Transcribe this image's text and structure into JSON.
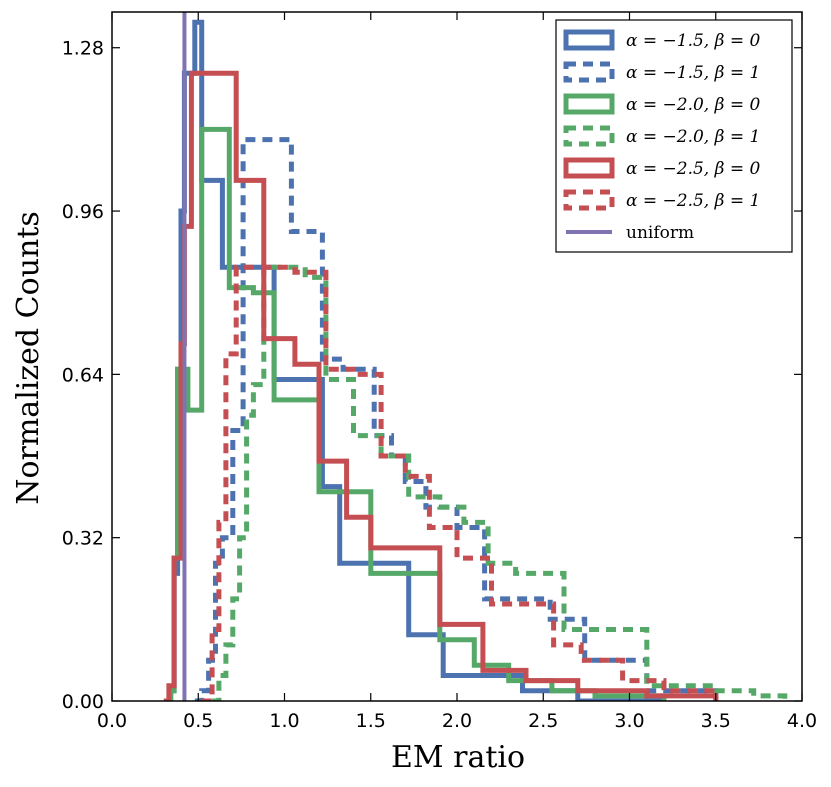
{
  "chart_data": {
    "type": "histogram-step",
    "title": "",
    "xlabel": "EM ratio",
    "ylabel": "Normalized Counts",
    "xlim": [
      0.0,
      4.0
    ],
    "ylim": [
      0.0,
      1.35
    ],
    "xticks": [
      0.0,
      0.5,
      1.0,
      1.5,
      2.0,
      2.5,
      3.0,
      3.5,
      4.0
    ],
    "xtick_labels": [
      "0.0",
      "0.5",
      "1.0",
      "1.5",
      "2.0",
      "2.5",
      "3.0",
      "3.5",
      "4.0"
    ],
    "yticks": [
      0.0,
      0.32,
      0.64,
      0.96,
      1.28
    ],
    "ytick_labels": [
      "0.00",
      "0.32",
      "0.64",
      "0.96",
      "1.28"
    ],
    "legend_position": "top-right",
    "series": [
      {
        "name": "α = −1.5, β = 0",
        "color": "#4C72B0",
        "style": "solid",
        "edges": [
          0.32,
          0.34,
          0.36,
          0.38,
          0.4,
          0.42,
          0.48,
          0.52,
          0.64,
          0.78,
          0.94,
          1.22,
          1.32,
          1.5,
          1.72,
          1.92,
          2.12,
          2.38,
          2.7,
          3.2
        ],
        "heights": [
          0.0,
          0.02,
          0.25,
          0.65,
          0.96,
          1.23,
          1.33,
          1.02,
          0.85,
          0.85,
          0.63,
          0.42,
          0.27,
          0.27,
          0.13,
          0.05,
          0.05,
          0.02,
          0.0
        ]
      },
      {
        "name": "α = −1.5, β = 1",
        "color": "#4C72B0",
        "style": "dashed",
        "edges": [
          0.48,
          0.52,
          0.56,
          0.6,
          0.64,
          0.7,
          0.76,
          0.9,
          1.04,
          1.22,
          1.34,
          1.52,
          1.62,
          1.7,
          1.82,
          2.0,
          2.16,
          2.36,
          2.54,
          2.74,
          3.1,
          3.5
        ],
        "heights": [
          0.0,
          0.02,
          0.08,
          0.27,
          0.32,
          0.53,
          1.1,
          1.1,
          0.92,
          0.67,
          0.65,
          0.52,
          0.48,
          0.43,
          0.38,
          0.34,
          0.2,
          0.2,
          0.16,
          0.08,
          0.02,
          0.0
        ]
      },
      {
        "name": "α = −2.0, β = 0",
        "color": "#55A868",
        "style": "solid",
        "edges": [
          0.3,
          0.34,
          0.36,
          0.38,
          0.44,
          0.52,
          0.68,
          0.82,
          0.94,
          1.2,
          1.34,
          1.5,
          1.7,
          1.9,
          2.1,
          2.3,
          2.55,
          2.8,
          3.2
        ],
        "heights": [
          0.0,
          0.02,
          0.28,
          0.65,
          0.57,
          1.12,
          0.81,
          0.8,
          0.59,
          0.41,
          0.41,
          0.25,
          0.25,
          0.12,
          0.07,
          0.04,
          0.02,
          0.01,
          0.0
        ]
      },
      {
        "name": "α = −2.0, β = 1",
        "color": "#55A868",
        "style": "dashed",
        "edges": [
          0.58,
          0.62,
          0.66,
          0.7,
          0.74,
          0.78,
          0.82,
          0.88,
          1.0,
          1.12,
          1.24,
          1.4,
          1.56,
          1.72,
          1.9,
          2.04,
          2.18,
          2.34,
          2.62,
          2.84,
          3.1,
          3.3,
          3.5,
          3.72,
          3.9
        ],
        "heights": [
          0.0,
          0.05,
          0.11,
          0.2,
          0.32,
          0.56,
          0.62,
          0.85,
          0.85,
          0.83,
          0.63,
          0.52,
          0.48,
          0.4,
          0.38,
          0.35,
          0.27,
          0.25,
          0.14,
          0.14,
          0.03,
          0.03,
          0.02,
          0.01,
          0.0
        ]
      },
      {
        "name": "α = −2.5, β = 0",
        "color": "#C44E52",
        "style": "solid",
        "edges": [
          0.3,
          0.33,
          0.36,
          0.4,
          0.42,
          0.46,
          0.56,
          0.72,
          0.88,
          1.06,
          1.2,
          1.36,
          1.5,
          1.7,
          1.9,
          2.15,
          2.4,
          2.7,
          3.1,
          3.5
        ],
        "heights": [
          0.0,
          0.03,
          0.28,
          0.7,
          0.93,
          1.23,
          1.23,
          1.02,
          0.71,
          0.66,
          0.47,
          0.36,
          0.3,
          0.3,
          0.15,
          0.06,
          0.04,
          0.02,
          0.01,
          0.0
        ]
      },
      {
        "name": "α = −2.5, β = 1",
        "color": "#C44E52",
        "style": "dashed",
        "edges": [
          0.52,
          0.58,
          0.62,
          0.66,
          0.72,
          0.76,
          0.82,
          0.92,
          1.06,
          1.24,
          1.4,
          1.56,
          1.7,
          1.84,
          2.0,
          2.2,
          2.4,
          2.56,
          2.72,
          2.96,
          3.2,
          3.5
        ],
        "heights": [
          0.0,
          0.14,
          0.35,
          0.68,
          0.85,
          0.85,
          0.85,
          0.85,
          0.84,
          0.65,
          0.64,
          0.48,
          0.44,
          0.34,
          0.28,
          0.19,
          0.19,
          0.11,
          0.08,
          0.04,
          0.02,
          0.0
        ]
      }
    ],
    "reference_lines": [
      {
        "name": "uniform",
        "color": "#8172B2",
        "x": 0.42
      }
    ],
    "legend": {
      "entries": [
        {
          "label": "α = −1.5, β = 0",
          "color": "#4C72B0",
          "style": "solid"
        },
        {
          "label": "α = −1.5, β = 1",
          "color": "#4C72B0",
          "style": "dashed"
        },
        {
          "label": "α = −2.0, β = 0",
          "color": "#55A868",
          "style": "solid"
        },
        {
          "label": "α = −2.0, β = 1",
          "color": "#55A868",
          "style": "dashed"
        },
        {
          "label": "α = −2.5, β = 0",
          "color": "#C44E52",
          "style": "solid"
        },
        {
          "label": "α = −2.5, β = 1",
          "color": "#C44E52",
          "style": "dashed"
        },
        {
          "label": "uniform",
          "color": "#8172B2",
          "style": "line"
        }
      ]
    }
  }
}
